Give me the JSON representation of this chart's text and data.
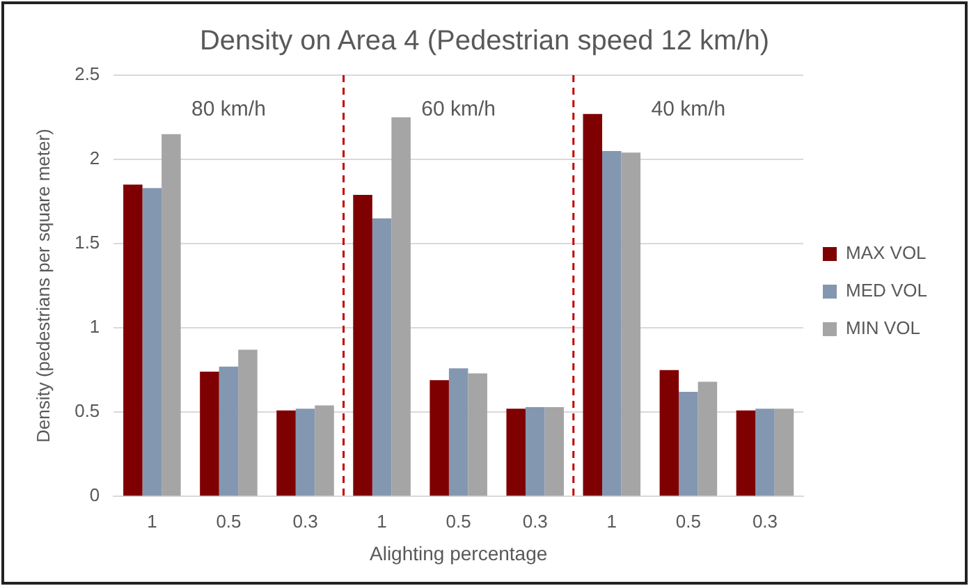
{
  "chart_data": {
    "type": "bar",
    "title": "Density on Area 4 (Pedestrian speed 12 km/h)",
    "xlabel": "Alighting percentage",
    "ylabel": "Density (pedestrians per square meter)",
    "categories": [
      "1",
      "0.5",
      "0.3",
      "1",
      "0.5",
      "0.3",
      "1",
      "0.5",
      "0.3"
    ],
    "series": [
      {
        "name": "MAX VOL",
        "color": "#7f0000",
        "values": [
          1.85,
          0.74,
          0.51,
          1.79,
          0.69,
          0.52,
          2.27,
          0.75,
          0.51
        ]
      },
      {
        "name": "MED VOL",
        "color": "#8497b0",
        "values": [
          1.83,
          0.77,
          0.52,
          1.65,
          0.76,
          0.53,
          2.05,
          0.62,
          0.52
        ]
      },
      {
        "name": "MIN VOL",
        "color": "#a5a5a5",
        "values": [
          2.15,
          0.87,
          0.54,
          2.25,
          0.73,
          0.53,
          2.04,
          0.68,
          0.52
        ]
      }
    ],
    "ylim": [
      0,
      2.5
    ],
    "yticks": [
      0,
      0.5,
      1,
      1.5,
      2,
      2.5
    ],
    "grid": "y",
    "legend": "right",
    "annotations": [
      "80 km/h",
      "60 km/h",
      "40 km/h"
    ]
  }
}
